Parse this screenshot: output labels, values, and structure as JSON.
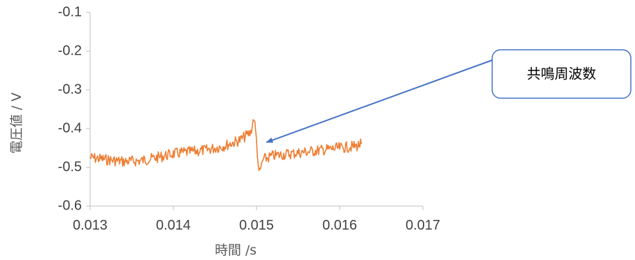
{
  "chart_data": {
    "type": "line",
    "title": "",
    "xlabel": "時間 /s",
    "ylabel": "電圧値 / V",
    "xlim": [
      0.013,
      0.017
    ],
    "ylim": [
      -0.6,
      -0.1
    ],
    "x_ticks": [
      0.013,
      0.014,
      0.015,
      0.016,
      0.017
    ],
    "x_tick_labels": [
      "0.013",
      "0.014",
      "0.015",
      "0.016",
      "0.017"
    ],
    "y_ticks": [
      -0.1,
      -0.2,
      -0.3,
      -0.4,
      -0.5,
      -0.6
    ],
    "y_tick_labels": [
      "-0.1",
      "-0.2",
      "-0.3",
      "-0.4",
      "-0.5",
      "-0.6"
    ],
    "grid": false,
    "legend": "none",
    "series": [
      {
        "color": "#ED7D31",
        "x": [
          0.013,
          0.0132,
          0.0134,
          0.0136,
          0.0138,
          0.014,
          0.0142,
          0.0144,
          0.0146,
          0.0148,
          0.01493,
          0.01497,
          0.015,
          0.01503,
          0.01508,
          0.0152,
          0.0154,
          0.0156,
          0.0158,
          0.016,
          0.0162,
          0.01626
        ],
        "y": [
          -0.475,
          -0.48,
          -0.485,
          -0.483,
          -0.475,
          -0.465,
          -0.46,
          -0.455,
          -0.445,
          -0.43,
          -0.41,
          -0.37,
          -0.43,
          -0.52,
          -0.48,
          -0.47,
          -0.465,
          -0.46,
          -0.455,
          -0.45,
          -0.445,
          -0.44
        ]
      }
    ],
    "annotation": {
      "text": "共鳴周波数",
      "arrow_target": {
        "x": 0.01512,
        "y": -0.43
      }
    }
  },
  "colors": {
    "series": "#ED7D31",
    "arrow": "#4472C4",
    "callout_border": "#4472C4",
    "axis": "#BFBFBF"
  }
}
